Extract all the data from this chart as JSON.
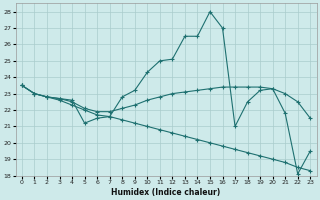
{
  "xlabel": "Humidex (Indice chaleur)",
  "background_color": "#ceeaea",
  "grid_color": "#aacccc",
  "line_color": "#1e7070",
  "xlim": [
    -0.5,
    23.5
  ],
  "ylim": [
    18,
    28.5
  ],
  "xticks": [
    0,
    1,
    2,
    3,
    4,
    5,
    6,
    7,
    8,
    9,
    10,
    11,
    12,
    13,
    14,
    15,
    16,
    17,
    18,
    19,
    20,
    21,
    22,
    23
  ],
  "yticks": [
    18,
    19,
    20,
    21,
    22,
    23,
    24,
    25,
    26,
    27,
    28
  ],
  "series1_x": [
    0,
    1,
    2,
    3,
    4,
    5,
    6,
    7,
    8,
    9,
    10,
    11,
    12,
    13,
    14,
    15,
    16,
    17,
    18,
    19,
    20,
    21,
    22,
    23
  ],
  "series1_y": [
    23.5,
    23.0,
    22.8,
    22.7,
    22.6,
    21.2,
    21.5,
    21.6,
    22.8,
    23.2,
    24.3,
    25.0,
    25.1,
    26.5,
    26.5,
    28.0,
    27.0,
    21.0,
    22.5,
    23.2,
    23.3,
    21.8,
    18.1,
    19.5
  ],
  "series2_x": [
    0,
    1,
    2,
    3,
    4,
    5,
    6,
    7,
    8,
    9,
    10,
    11,
    12,
    13,
    14,
    15,
    16,
    17,
    18,
    19,
    20,
    21,
    22,
    23
  ],
  "series2_y": [
    23.5,
    23.0,
    22.8,
    22.7,
    22.5,
    22.1,
    21.9,
    21.9,
    22.1,
    22.3,
    22.6,
    22.8,
    23.0,
    23.1,
    23.2,
    23.3,
    23.4,
    23.4,
    23.4,
    23.4,
    23.3,
    23.0,
    22.5,
    21.5
  ],
  "series3_x": [
    0,
    1,
    2,
    3,
    4,
    5,
    6,
    7,
    8,
    9,
    10,
    11,
    12,
    13,
    14,
    15,
    16,
    17,
    18,
    19,
    20,
    21,
    22,
    23
  ],
  "series3_y": [
    23.5,
    23.0,
    22.8,
    22.6,
    22.3,
    22.0,
    21.7,
    21.6,
    21.4,
    21.2,
    21.0,
    20.8,
    20.6,
    20.4,
    20.2,
    20.0,
    19.8,
    19.6,
    19.4,
    19.2,
    19.0,
    18.8,
    18.5,
    18.3
  ]
}
